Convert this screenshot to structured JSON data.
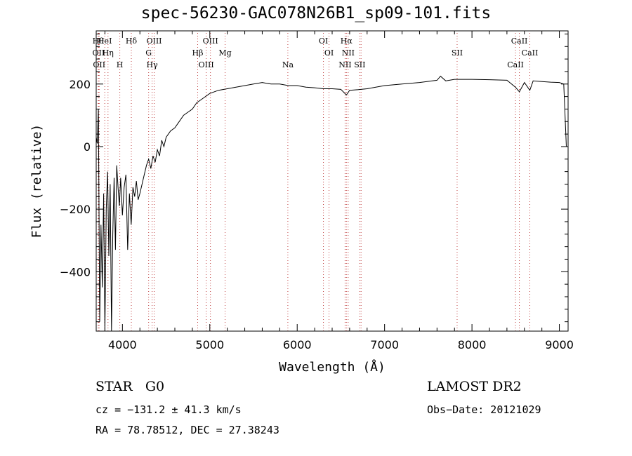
{
  "chart_data": {
    "type": "line",
    "title": "spec-56230-GAC078N26B1_sp09-101.fits",
    "xlabel": "Wavelength (Å)",
    "ylabel": "Flux (relative)",
    "xlim": [
      3700,
      9100
    ],
    "ylim": [
      -590,
      370
    ],
    "xticks": [
      4000,
      5000,
      6000,
      7000,
      8000,
      9000
    ],
    "yticks": [
      -400,
      -200,
      0,
      200
    ],
    "series": [
      {
        "x": [
          3700,
          3712,
          3725,
          3740,
          3755,
          3770,
          3785,
          3800,
          3815,
          3830,
          3845,
          3860,
          3875,
          3890,
          3905,
          3920,
          3935,
          3950,
          3965,
          3980,
          4000,
          4020,
          4040,
          4060,
          4080,
          4100,
          4120,
          4140,
          4160,
          4180,
          4200,
          4225,
          4250,
          4275,
          4300,
          4325,
          4350,
          4375,
          4400,
          4425,
          4450,
          4475,
          4500,
          4550,
          4600,
          4650,
          4700,
          4750,
          4800,
          4850,
          4900,
          4950,
          5000,
          5100,
          5200,
          5300,
          5400,
          5500,
          5600,
          5700,
          5800,
          5900,
          6000,
          6100,
          6200,
          6300,
          6400,
          6500,
          6563,
          6600,
          6700,
          6800,
          6900,
          7000,
          7200,
          7400,
          7600,
          7640,
          7700,
          7800,
          8000,
          8200,
          8400,
          8498,
          8542,
          8600,
          8662,
          8700,
          8800,
          8900,
          9000,
          9050,
          9080
        ],
        "y": [
          30,
          10,
          120,
          -560,
          -250,
          -450,
          -150,
          -600,
          -200,
          -80,
          -350,
          -120,
          -600,
          -280,
          -100,
          -330,
          -60,
          -130,
          -190,
          -100,
          -220,
          -130,
          -90,
          -330,
          -150,
          -250,
          -130,
          -160,
          -110,
          -170,
          -150,
          -120,
          -90,
          -60,
          -40,
          -70,
          -30,
          -50,
          -10,
          -30,
          20,
          0,
          30,
          50,
          60,
          80,
          100,
          110,
          120,
          140,
          150,
          160,
          170,
          180,
          185,
          190,
          195,
          200,
          205,
          200,
          200,
          195,
          195,
          190,
          188,
          185,
          185,
          183,
          165,
          180,
          182,
          185,
          190,
          195,
          200,
          205,
          212,
          225,
          210,
          215,
          215,
          214,
          212,
          190,
          175,
          205,
          180,
          210,
          208,
          206,
          205,
          200,
          0
        ]
      }
    ],
    "lines": [
      {
        "x": 3722,
        "labels": [
          "Hθ"
        ]
      },
      {
        "x": 3727,
        "labels": [
          "OII"
        ]
      },
      {
        "x": 3734,
        "labels": [
          "OII"
        ]
      },
      {
        "x": 3798,
        "labels": [
          "HeI"
        ]
      },
      {
        "x": 3835,
        "labels": [
          "Hη"
        ]
      },
      {
        "x": 3970,
        "labels": [
          "H"
        ]
      },
      {
        "x": 4102,
        "labels": [
          "Hδ"
        ]
      },
      {
        "x": 4300,
        "labels": [
          "G"
        ]
      },
      {
        "x": 4340,
        "labels": [
          "Hγ"
        ]
      },
      {
        "x": 4363,
        "labels": [
          "OIII"
        ]
      },
      {
        "x": 4861,
        "labels": [
          "Hβ"
        ]
      },
      {
        "x": 4959,
        "labels": [
          "OIII"
        ]
      },
      {
        "x": 5007,
        "labels": [
          "OIII"
        ]
      },
      {
        "x": 5175,
        "labels": [
          "Mg"
        ]
      },
      {
        "x": 5893,
        "labels": [
          "Na"
        ]
      },
      {
        "x": 6300,
        "labels": [
          "OI"
        ]
      },
      {
        "x": 6364,
        "labels": [
          "OI"
        ]
      },
      {
        "x": 6548,
        "labels": [
          "NII"
        ]
      },
      {
        "x": 6563,
        "labels": [
          "Hα"
        ]
      },
      {
        "x": 6583,
        "labels": [
          "NII"
        ]
      },
      {
        "x": 6716,
        "labels": [
          "SII"
        ]
      },
      {
        "x": 6731,
        "labels": []
      },
      {
        "x": 7830,
        "labels": [
          "SII"
        ]
      },
      {
        "x": 8498,
        "labels": [
          "CaII"
        ]
      },
      {
        "x": 8542,
        "labels": [
          "CaII"
        ]
      },
      {
        "x": 8662,
        "labels": [
          "CaII"
        ]
      }
    ]
  },
  "info": {
    "object_class": "STAR",
    "subclass": "G0",
    "cz": "cz = −131.2 ± 41.3 km/s",
    "radec": "RA =  78.78512, DEC =  27.38243",
    "survey": "LAMOST DR2",
    "obs_date": "Obs−Date: 20121029"
  }
}
